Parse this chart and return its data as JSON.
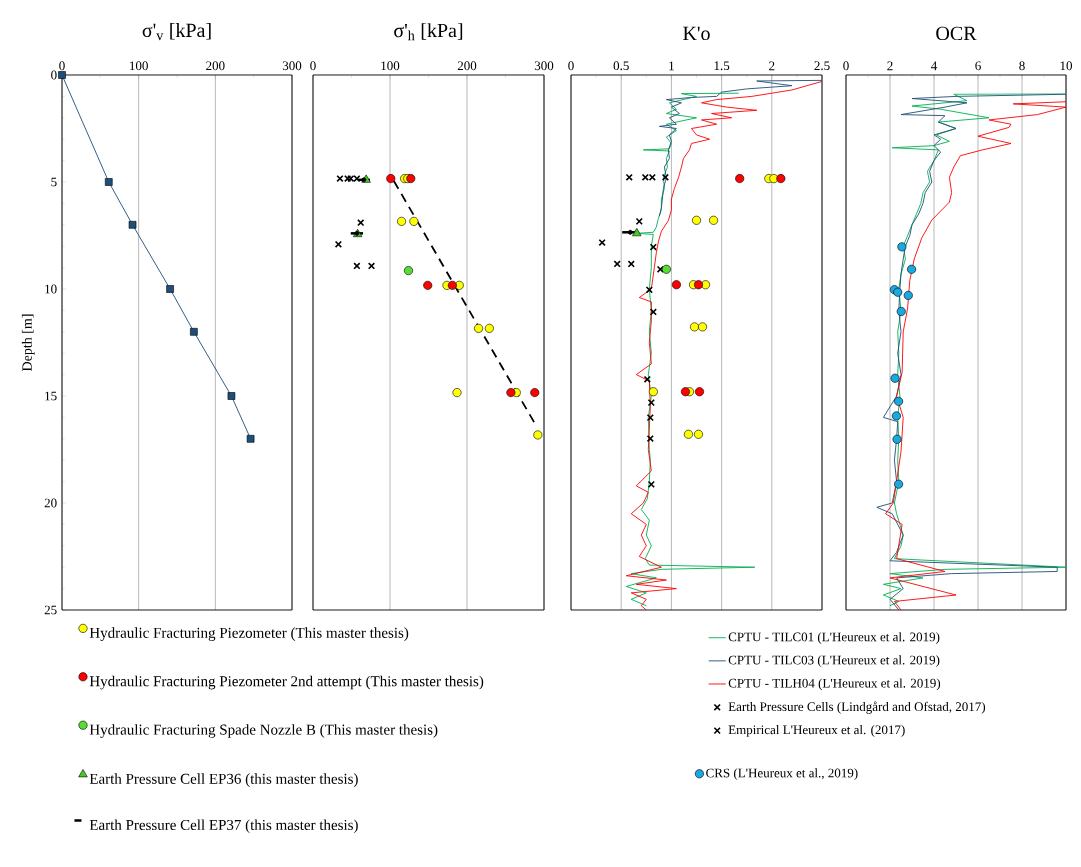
{
  "chart_data": [
    {
      "type": "line",
      "title": "σ'$_{v}$ [kPa]",
      "ylabel": "Depth [m]",
      "xlim": [
        0,
        300
      ],
      "xticks": [
        0,
        100,
        200,
        300
      ],
      "ylim": [
        25,
        0
      ],
      "yticks": [
        0,
        5,
        10,
        15,
        20,
        25
      ],
      "grid": "x",
      "series": [
        {
          "color": "#1f4e79",
          "marker": "square",
          "x": [
            0,
            61,
            92,
            141,
            172,
            221,
            246
          ],
          "values": [
            0,
            5,
            7,
            10,
            12,
            15,
            17
          ]
        }
      ]
    },
    {
      "type": "scatter",
      "title": "σ'$_{h}$ [kPa]",
      "xlim": [
        0,
        300
      ],
      "xticks": [
        0,
        100,
        200,
        300
      ],
      "ylim": [
        25,
        0
      ],
      "tick_labels": "x",
      "grid": "x",
      "legend": "bottom",
      "series": [
        {
          "type": "line",
          "color": "#000000",
          "marker": "none",
          "line_style": "dashed",
          "x": [
            105,
            290
          ],
          "values": [
            4.95,
            16.4
          ]
        },
        {
          "color": "#000000",
          "marker": "cross",
          "x": [
            35,
            45,
            49,
            57,
            62,
            33,
            57,
            76
          ],
          "values": [
            4.84,
            4.84,
            4.84,
            4.84,
            6.9,
            7.91,
            8.92,
            8.92
          ]
        },
        {
          "name": "Hydraulic Fracturing Piezometer (This master thesis)",
          "color": "#ffff00",
          "marker": "circle",
          "x": [
            119,
            123,
            115,
            131,
            174,
            190,
            215,
            229,
            187,
            264,
            292
          ],
          "values": [
            4.84,
            4.84,
            6.84,
            6.84,
            9.83,
            9.83,
            11.84,
            11.84,
            14.84,
            14.84,
            16.82
          ]
        },
        {
          "name": "Hydraulic Fracturing Piezometer 2nd attempt (This master thesis)",
          "color": "#ff0000",
          "marker": "circle",
          "x": [
            101,
            127,
            149,
            181,
            257,
            288
          ],
          "values": [
            4.84,
            4.84,
            9.83,
            9.83,
            14.84,
            14.84
          ]
        },
        {
          "name": "Hydraulic Fracturing Spade Nozzle B (This master thesis)",
          "color": "#55dd33",
          "marker": "circle",
          "x": [
            124
          ],
          "values": [
            9.14
          ]
        },
        {
          "name": "Earth Pressure Cell EP36 (this master thesis)",
          "color": "#44cc22",
          "marker": "triangle",
          "x": [
            69,
            58
          ],
          "values": [
            4.9,
            7.44
          ]
        },
        {
          "name": "Earth Pressure Cell EP37 (this master thesis)",
          "color": "#000000",
          "marker": "none",
          "x": [
            66,
            57
          ],
          "values": [
            4.9,
            7.4
          ],
          "xerrors": [
            8,
            8
          ]
        }
      ]
    },
    {
      "type": "line",
      "title": "K'o",
      "xlim": [
        0,
        2.5
      ],
      "xticks": [
        0,
        0.5,
        1,
        1.5,
        2,
        2.5
      ],
      "ylim": [
        25,
        0
      ],
      "tick_labels": "x",
      "grid": "x",
      "legend": "bottom",
      "series": [
        {
          "name": "CPTU - TILC01 (L'Heureux et al. 2019)",
          "color": "#00b050",
          "x": [
            1.67,
            1.1,
            1.25,
            0.98,
            1.05,
            0.95,
            1.25,
            0.95,
            1.05,
            0.95,
            1.0,
            0.98,
            0.72,
            0.98,
            0.95,
            0.96,
            0.92,
            0.93,
            0.9,
            0.9,
            0.87,
            0.85,
            0.82,
            0.65,
            0.82,
            0.8,
            0.8,
            0.78,
            0.8,
            0.78,
            0.8,
            0.77,
            0.8,
            0.77,
            0.78,
            0.79,
            0.78,
            0.76,
            0.7,
            0.78,
            0.75,
            0.8,
            0.74,
            0.78,
            1.83,
            0.9,
            0.6,
            0.85,
            0.55,
            0.75,
            0.6,
            0.75
          ],
          "values": [
            0.85,
            0.87,
            1.0,
            1.3,
            1.6,
            1.8,
            2.0,
            2.3,
            2.6,
            2.9,
            3.2,
            3.45,
            3.5,
            3.55,
            3.9,
            4.3,
            4.8,
            5.3,
            5.8,
            6.3,
            6.7,
            7.1,
            7.35,
            7.4,
            7.45,
            8.0,
            9.0,
            10,
            11,
            12,
            13,
            14,
            15,
            16,
            17.5,
            18,
            19,
            19.8,
            20.3,
            20.8,
            21.5,
            22,
            22.6,
            22.9,
            23.0,
            23.1,
            23.3,
            23.5,
            23.9,
            24.2,
            24.5,
            24.8
          ]
        },
        {
          "name": "CPTU - TILC03 (L'Heureux et al. 2019)",
          "color": "#1f4e79",
          "x": [
            2.5,
            1.85,
            2.2,
            1.75,
            1.5,
            1.45,
            1.2,
            0.95,
            1.1,
            1.0,
            1.08,
            0.98,
            1.05,
            0.88,
            1.05,
            0.98,
            1.0,
            0.97,
            0.98,
            0.93,
            0.95,
            0.92,
            0.91,
            0.9,
            0.88
          ],
          "values": [
            0.25,
            0.28,
            0.5,
            0.65,
            0.8,
            1.0,
            1.05,
            1.15,
            1.3,
            1.5,
            1.8,
            2.0,
            2.3,
            2.4,
            2.5,
            2.8,
            3.1,
            3.5,
            3.9,
            4.3,
            4.8,
            5.3,
            5.8,
            6.2,
            6.6
          ]
        },
        {
          "name": "CPTU - TILH04 (L'Heureux et al. 2019)",
          "color": "#ff0000",
          "x": [
            2.5,
            2.35,
            2.2,
            2.0,
            1.8,
            1.45,
            1.3,
            1.55,
            1.85,
            1.4,
            1.6,
            1.3,
            1.45,
            1.2,
            1.25,
            1.38,
            1.2,
            1.18,
            1.12,
            1.1,
            1.07,
            1.03,
            1.0,
            1.0,
            0.97,
            0.9,
            0.87,
            0.85,
            0.83,
            0.8,
            0.68,
            0.8,
            0.8,
            0.78,
            0.8,
            0.65,
            0.78,
            0.79,
            0.77,
            0.8,
            0.65,
            0.77,
            0.72,
            0.6,
            0.75,
            0.7,
            0.75,
            0.68,
            0.9,
            0.55,
            0.95,
            0.65,
            1.05,
            0.6,
            0.75,
            0.7,
            0.75
          ],
          "values": [
            0.3,
            0.5,
            0.7,
            0.85,
            1.0,
            1.15,
            1.3,
            1.5,
            1.65,
            1.8,
            2.0,
            2.1,
            2.3,
            2.5,
            2.8,
            3.0,
            3.2,
            3.5,
            3.9,
            4.3,
            4.8,
            5.3,
            5.8,
            6.3,
            6.8,
            7.3,
            7.8,
            8.3,
            9.0,
            10,
            10.4,
            10.6,
            11.5,
            12.5,
            13.5,
            14.0,
            14.3,
            15.5,
            17.5,
            18.5,
            19.2,
            19.5,
            20.0,
            20.5,
            21,
            21.5,
            22,
            22.5,
            23.0,
            23.4,
            23.6,
            23.8,
            24.0,
            24.2,
            24.5,
            24.8,
            25
          ]
        },
        {
          "type": "scatter",
          "name": "Earth Pressure Cells (Lindgård and Ofstad, 2017)",
          "color": "#000000",
          "marker": "cross",
          "x": [
            0.58,
            0.74,
            0.81,
            0.94,
            0.68,
            0.31,
            0.46,
            0.6
          ],
          "values": [
            4.78,
            4.78,
            4.78,
            4.78,
            6.84,
            7.83,
            8.83,
            8.83
          ]
        },
        {
          "type": "scatter",
          "name": "Empirical L'Heureux et al. (2017)",
          "color": "#000000",
          "marker": "cross",
          "x": [
            0.82,
            0.89,
            0.78,
            0.82,
            0.76,
            0.8,
            0.79,
            0.79,
            0.8
          ],
          "values": [
            8.04,
            9.08,
            10.04,
            11.07,
            14.22,
            15.31,
            16.01,
            16.99,
            19.13
          ]
        },
        {
          "type": "scatter",
          "color": "#ffff00",
          "marker": "circle",
          "x": [
            1.97,
            2.02,
            1.25,
            1.42,
            1.22,
            1.34,
            1.23,
            1.31,
            0.82,
            1.18,
            1.17,
            1.27
          ],
          "values": [
            4.84,
            4.84,
            6.79,
            6.79,
            9.8,
            9.8,
            11.77,
            11.77,
            14.8,
            14.8,
            16.79,
            16.79
          ]
        },
        {
          "type": "scatter",
          "color": "#ff0000",
          "marker": "circle",
          "x": [
            1.68,
            2.09,
            1.05,
            1.27,
            1.14,
            1.28
          ],
          "values": [
            4.84,
            4.84,
            9.8,
            9.8,
            14.8,
            14.8
          ]
        },
        {
          "type": "scatter",
          "color": "#55dd33",
          "marker": "circle",
          "x": [
            0.95
          ],
          "values": [
            9.08
          ]
        },
        {
          "type": "scatter",
          "color": "#44cc22",
          "marker": "triangle",
          "x": [
            0.655
          ],
          "values": [
            7.4
          ]
        },
        {
          "type": "scatter",
          "color": "#000000",
          "marker": "none",
          "x": [
            0.59
          ],
          "values": [
            7.35
          ],
          "xerrors": [
            0.08
          ]
        }
      ]
    },
    {
      "type": "line",
      "title": "OCR",
      "xlim": [
        0,
        10
      ],
      "xticks": [
        0,
        2,
        4,
        6,
        8,
        10
      ],
      "ylim": [
        25,
        0
      ],
      "tick_labels": "x",
      "grid": "x",
      "legend": "bottom",
      "series": [
        {
          "color": "#00b050",
          "x": [
            10,
            4.9,
            5.5,
            3.0,
            4.3,
            6.5,
            4.2,
            5.0,
            4.1,
            4.7,
            4.0,
            2.1,
            4.2,
            4.0,
            3.7,
            3.8,
            3.5,
            3.4,
            3.2,
            3.0,
            2.8,
            2.6,
            2.7,
            2.5,
            2.4,
            2.5,
            2.35,
            2.4,
            2.35,
            2.45,
            2.35,
            2.4,
            2.35,
            2.4,
            2.2,
            2.3,
            2.6,
            2.5,
            2.2,
            10,
            4.5,
            2.0,
            3.5,
            1.7,
            2.5,
            1.7,
            2.4,
            2.0
          ],
          "values": [
            0.88,
            0.9,
            1.2,
            1.45,
            1.6,
            2.0,
            2.2,
            2.5,
            2.8,
            3.1,
            3.3,
            3.4,
            3.5,
            4.0,
            4.5,
            5.0,
            5.5,
            6.0,
            6.5,
            7.0,
            7.5,
            8.0,
            8.6,
            9.3,
            10,
            11,
            12,
            13,
            14,
            15,
            16,
            17,
            18,
            19,
            20,
            20.5,
            21.5,
            22,
            22.6,
            23.0,
            23.1,
            23.3,
            23.5,
            23.8,
            24.0,
            24.3,
            24.6,
            24.8
          ]
        },
        {
          "color": "#1f4e79",
          "x": [
            10,
            5.0,
            3.0,
            5.5,
            4.5,
            2.5,
            4.5,
            4.2,
            5.0,
            4.0,
            4.3,
            4.0,
            4.3,
            4.0,
            3.8,
            3.9,
            3.6,
            3.5,
            3.3,
            3.0,
            2.9,
            2.7,
            2.6,
            2.5,
            2.45,
            2.4,
            2.5,
            2.35,
            2.5,
            2.3,
            1.7,
            2.35,
            2.3,
            2.2,
            2.3,
            2.1,
            1.4,
            2.1,
            2.6,
            2.3,
            2.0,
            9.6,
            9.6,
            4.8,
            2.3,
            2.6,
            2.0,
            2.4
          ],
          "values": [
            0.9,
            1.0,
            1.1,
            1.3,
            1.5,
            1.85,
            1.9,
            2.2,
            2.5,
            2.8,
            3.0,
            3.3,
            3.6,
            4.0,
            4.5,
            5.0,
            5.5,
            6.0,
            6.5,
            7.0,
            7.5,
            8.0,
            8.6,
            9.3,
            10,
            11,
            12,
            13,
            14,
            15,
            16.0,
            16.2,
            17,
            18,
            19,
            20,
            20.2,
            20.5,
            21.5,
            22.3,
            22.7,
            23.0,
            23.2,
            23.3,
            23.5,
            24.0,
            24.5,
            25
          ]
        },
        {
          "color": "#ff0000",
          "x": [
            10,
            7.6,
            10,
            8.7,
            6.5,
            7.5,
            7.4,
            6.0,
            7.5,
            6.2,
            5.2,
            4.9,
            4.7,
            4.8,
            4.7,
            3.9,
            3.45,
            3.1,
            2.9,
            2.8,
            2.6,
            2.55,
            2.3,
            2.6,
            2.5,
            2.15,
            1.8,
            2.55,
            2.3,
            4.5,
            2.0,
            5.0,
            2.2,
            2.5
          ],
          "values": [
            1.25,
            1.35,
            1.5,
            1.85,
            2.1,
            2.3,
            2.45,
            2.86,
            3.2,
            3.5,
            3.77,
            4.3,
            4.78,
            5.5,
            5.94,
            6.78,
            7.6,
            8.6,
            9.6,
            10.9,
            12,
            13.9,
            15,
            16,
            17.6,
            20,
            20.5,
            21,
            22.6,
            23.2,
            23.5,
            24.3,
            24.6,
            25
          ]
        },
        {
          "type": "scatter",
          "name": "CRS (L'Heureux et al., 2019)",
          "color": "#1aa8e0",
          "marker": "circle",
          "x": [
            2.54,
            2.98,
            2.2,
            2.35,
            2.83,
            2.51,
            2.23,
            2.39,
            2.29,
            2.32,
            2.39
          ],
          "values": [
            8.03,
            9.08,
            10.03,
            10.15,
            10.3,
            11.05,
            14.17,
            15.25,
            15.93,
            17.02,
            19.12
          ]
        }
      ]
    }
  ]
}
